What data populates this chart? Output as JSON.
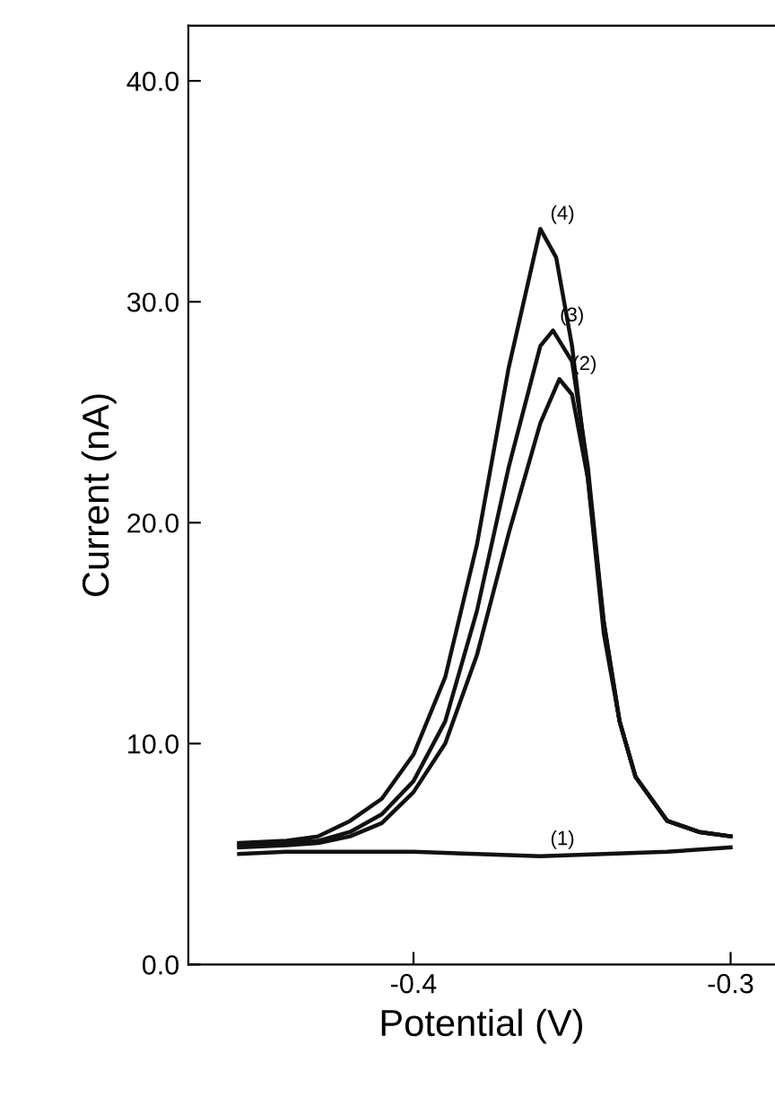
{
  "chart_data": {
    "type": "line",
    "xlabel": "Potential (V)",
    "ylabel": "Current (nA)",
    "xlim": [
      -0.471,
      -0.286
    ],
    "ylim": [
      0,
      42.5
    ],
    "xticks": [
      -0.4,
      -0.3
    ],
    "yticks": [
      {
        "value": 0,
        "label": "0.0"
      },
      {
        "value": 10,
        "label": "10.0"
      },
      {
        "value": 20,
        "label": "20.0"
      },
      {
        "value": 30,
        "label": "30.0"
      },
      {
        "value": 40,
        "label": "40.0"
      }
    ],
    "grid": false,
    "legend": false,
    "line_style": "solid",
    "marker": "none",
    "series": [
      {
        "color": "#111111",
        "x": [
          -0.455,
          -0.44,
          -0.42,
          -0.4,
          -0.38,
          -0.36,
          -0.34,
          -0.32,
          -0.3
        ],
        "values": [
          5.0,
          5.1,
          5.1,
          5.1,
          5.0,
          4.9,
          5.0,
          5.1,
          5.3
        ]
      },
      {
        "color": "#111111",
        "x": [
          -0.455,
          -0.44,
          -0.43,
          -0.42,
          -0.41,
          -0.4,
          -0.39,
          -0.38,
          -0.37,
          -0.36,
          -0.354,
          -0.35,
          -0.345,
          -0.34,
          -0.335,
          -0.33,
          -0.32,
          -0.31,
          -0.3
        ],
        "values": [
          5.3,
          5.4,
          5.5,
          5.8,
          6.4,
          7.8,
          10,
          14,
          19.5,
          24.5,
          26.5,
          25.8,
          22,
          15.5,
          11,
          8.5,
          6.5,
          6.0,
          5.8
        ]
      },
      {
        "color": "#111111",
        "x": [
          -0.455,
          -0.44,
          -0.43,
          -0.42,
          -0.41,
          -0.4,
          -0.39,
          -0.38,
          -0.37,
          -0.36,
          -0.356,
          -0.35,
          -0.345,
          -0.34,
          -0.335,
          -0.33,
          -0.32,
          -0.31,
          -0.3
        ],
        "values": [
          5.4,
          5.5,
          5.6,
          6.0,
          6.8,
          8.3,
          11,
          16,
          22.5,
          28,
          28.7,
          27.3,
          22.5,
          15.5,
          11,
          8.5,
          6.5,
          6.0,
          5.8
        ]
      },
      {
        "color": "#111111",
        "x": [
          -0.455,
          -0.44,
          -0.43,
          -0.42,
          -0.41,
          -0.4,
          -0.39,
          -0.38,
          -0.37,
          -0.36,
          -0.355,
          -0.35,
          -0.345,
          -0.34,
          -0.335,
          -0.33,
          -0.32,
          -0.31,
          -0.3
        ],
        "values": [
          5.5,
          5.6,
          5.8,
          6.5,
          7.5,
          9.5,
          13,
          19,
          27,
          33.3,
          32,
          28,
          22,
          15,
          11,
          8.5,
          6.5,
          6.0,
          5.8
        ]
      }
    ],
    "annotations": [
      {
        "text": "(1)",
        "x": -0.36,
        "y": 5.0
      },
      {
        "text": "(2)",
        "x": -0.353,
        "y": 26.5
      },
      {
        "text": "(3)",
        "x": -0.357,
        "y": 28.7
      },
      {
        "text": "(4)",
        "x": -0.36,
        "y": 33.3
      }
    ]
  }
}
